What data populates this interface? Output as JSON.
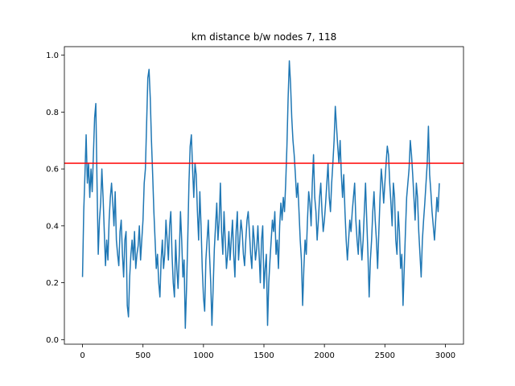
{
  "chart_data": {
    "type": "line",
    "title": "km distance b/w nodes 7, 118",
    "xlabel": "",
    "ylabel": "",
    "xlim": [
      -150,
      3150
    ],
    "ylim": [
      -0.016,
      1.03
    ],
    "x_ticks": [
      0,
      500,
      1000,
      1500,
      2000,
      2500,
      3000
    ],
    "y_ticks": [
      0.0,
      0.2,
      0.4,
      0.6,
      0.8,
      1.0
    ],
    "x_tick_labels": [
      "0",
      "500",
      "1000",
      "1500",
      "2000",
      "2500",
      "3000"
    ],
    "y_tick_labels": [
      "0.0",
      "0.2",
      "0.4",
      "0.6",
      "0.8",
      "1.0"
    ],
    "grid": false,
    "series": [
      {
        "color": "#1f77b4",
        "x_start": 0,
        "x_step": 10,
        "values": [
          0.22,
          0.45,
          0.58,
          0.72,
          0.55,
          0.62,
          0.5,
          0.6,
          0.52,
          0.65,
          0.78,
          0.83,
          0.55,
          0.3,
          0.42,
          0.48,
          0.6,
          0.5,
          0.38,
          0.26,
          0.35,
          0.28,
          0.42,
          0.5,
          0.55,
          0.48,
          0.4,
          0.52,
          0.35,
          0.3,
          0.26,
          0.38,
          0.42,
          0.3,
          0.22,
          0.35,
          0.38,
          0.12,
          0.08,
          0.22,
          0.3,
          0.35,
          0.28,
          0.38,
          0.25,
          0.3,
          0.33,
          0.4,
          0.28,
          0.35,
          0.42,
          0.55,
          0.6,
          0.76,
          0.92,
          0.95,
          0.85,
          0.7,
          0.58,
          0.45,
          0.35,
          0.25,
          0.3,
          0.2,
          0.15,
          0.28,
          0.35,
          0.25,
          0.3,
          0.42,
          0.35,
          0.28,
          0.4,
          0.45,
          0.3,
          0.2,
          0.15,
          0.35,
          0.25,
          0.18,
          0.3,
          0.45,
          0.35,
          0.22,
          0.28,
          0.04,
          0.18,
          0.35,
          0.55,
          0.68,
          0.72,
          0.6,
          0.5,
          0.62,
          0.58,
          0.45,
          0.35,
          0.52,
          0.4,
          0.25,
          0.15,
          0.1,
          0.28,
          0.35,
          0.42,
          0.3,
          0.2,
          0.05,
          0.18,
          0.32,
          0.4,
          0.48,
          0.35,
          0.42,
          0.55,
          0.38,
          0.3,
          0.45,
          0.35,
          0.25,
          0.3,
          0.38,
          0.28,
          0.35,
          0.42,
          0.3,
          0.22,
          0.38,
          0.45,
          0.28,
          0.35,
          0.42,
          0.38,
          0.3,
          0.26,
          0.35,
          0.42,
          0.45,
          0.38,
          0.3,
          0.25,
          0.4,
          0.35,
          0.28,
          0.32,
          0.4,
          0.3,
          0.2,
          0.35,
          0.4,
          0.18,
          0.25,
          0.3,
          0.05,
          0.2,
          0.28,
          0.35,
          0.42,
          0.38,
          0.45,
          0.3,
          0.35,
          0.25,
          0.4,
          0.48,
          0.42,
          0.5,
          0.45,
          0.55,
          0.68,
          0.85,
          0.98,
          0.9,
          0.78,
          0.7,
          0.65,
          0.58,
          0.5,
          0.55,
          0.45,
          0.35,
          0.28,
          0.12,
          0.25,
          0.35,
          0.3,
          0.42,
          0.52,
          0.48,
          0.4,
          0.55,
          0.65,
          0.5,
          0.45,
          0.35,
          0.42,
          0.5,
          0.55,
          0.45,
          0.38,
          0.42,
          0.48,
          0.55,
          0.62,
          0.5,
          0.45,
          0.55,
          0.62,
          0.7,
          0.82,
          0.75,
          0.68,
          0.62,
          0.7,
          0.58,
          0.5,
          0.58,
          0.45,
          0.35,
          0.28,
          0.35,
          0.42,
          0.38,
          0.45,
          0.5,
          0.55,
          0.42,
          0.35,
          0.3,
          0.42,
          0.35,
          0.28,
          0.35,
          0.45,
          0.55,
          0.42,
          0.3,
          0.15,
          0.28,
          0.35,
          0.45,
          0.52,
          0.42,
          0.35,
          0.25,
          0.38,
          0.5,
          0.6,
          0.55,
          0.48,
          0.55,
          0.62,
          0.68,
          0.65,
          0.55,
          0.48,
          0.4,
          0.55,
          0.5,
          0.35,
          0.3,
          0.45,
          0.38,
          0.25,
          0.3,
          0.12,
          0.25,
          0.38,
          0.5,
          0.55,
          0.6,
          0.7,
          0.65,
          0.58,
          0.5,
          0.42,
          0.55,
          0.5,
          0.38,
          0.3,
          0.22,
          0.35,
          0.42,
          0.48,
          0.55,
          0.62,
          0.75,
          0.58,
          0.52,
          0.45,
          0.4,
          0.35,
          0.42,
          0.5,
          0.45,
          0.55
        ]
      }
    ],
    "reference_line": {
      "y": 0.62,
      "color": "#ff0000"
    }
  }
}
